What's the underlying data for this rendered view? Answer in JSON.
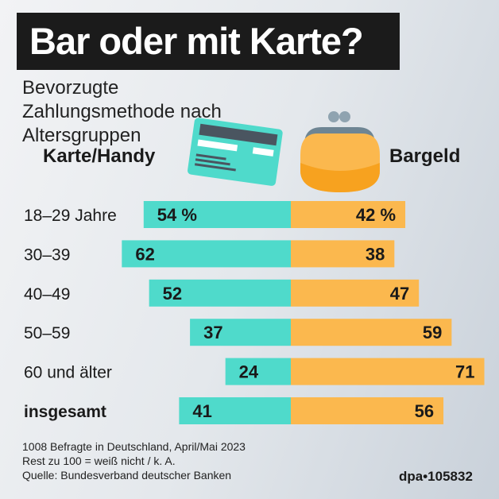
{
  "title": "Bar oder mit Karte?",
  "subtitle": "Bevorzugte Zahlungsmethode nach Altersgruppen",
  "legend": {
    "left": "Karte/Handy",
    "right": "Bargeld",
    "left_icon": "credit-card-icon",
    "right_icon": "coin-purse-icon"
  },
  "colors": {
    "karte": "#4fdacb",
    "bargeld": "#fbb84e",
    "title_bg": "#1b1b1b"
  },
  "chart_data": {
    "type": "bar",
    "orientation": "diverging-horizontal",
    "categories": [
      "18–29 Jahre",
      "30–39",
      "40–49",
      "50–59",
      "60 und älter",
      "insgesamt"
    ],
    "series": [
      {
        "name": "Karte/Handy",
        "values": [
          54,
          62,
          52,
          37,
          24,
          41
        ]
      },
      {
        "name": "Bargeld",
        "values": [
          42,
          38,
          47,
          59,
          71,
          56
        ]
      }
    ],
    "first_row_suffix": " %",
    "unit": "%"
  },
  "notes": [
    "1008 Befragte in Deutschland, April/Mai 2023",
    "Rest zu 100 = weiß nicht / k. A.",
    "Quelle: Bundesverband deutscher Banken"
  ],
  "credit": "dpa•105832"
}
